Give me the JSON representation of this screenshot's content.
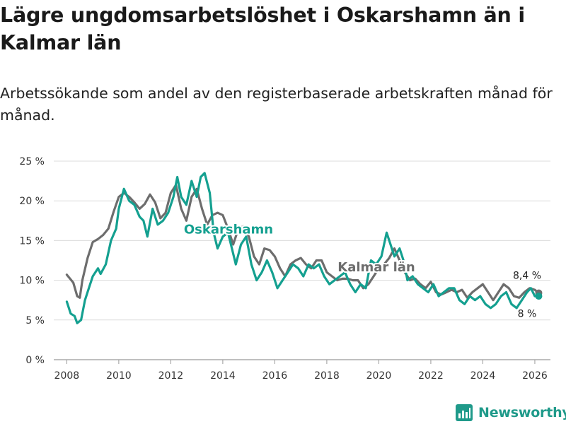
{
  "header": {
    "title": "Lägre ungdomsarbetslöshet i Oskarshamn än i Kalmar län",
    "subtitle": "Arbetssökande som andel av den registerbaserade arbetskraften månad för månad."
  },
  "brand": {
    "name": "Newsworthy",
    "icon": "bar-chart-logo-icon",
    "color": "#1f9a8a"
  },
  "chart_data": {
    "type": "line",
    "title": "Lägre ungdomsarbetslöshet i Oskarshamn än i Kalmar län",
    "subtitle": "Arbetssökande som andel av den registerbaserade arbetskraften månad för månad.",
    "xlabel": "",
    "ylabel": "",
    "x_unit": "year",
    "xlim": [
      2007.5,
      2026.6
    ],
    "ylim": [
      0,
      25
    ],
    "grid": true,
    "x_ticks": [
      2008,
      2010,
      2012,
      2014,
      2016,
      2018,
      2020,
      2022,
      2024,
      2026
    ],
    "x_tick_labels": [
      "2008",
      "2010",
      "2012",
      "2014",
      "2016",
      "2018",
      "2020",
      "2022",
      "2024",
      "2026"
    ],
    "y_ticks": [
      0,
      5,
      10,
      15,
      20,
      25
    ],
    "y_tick_labels": [
      "0 %",
      "5 %",
      "10 %",
      "15 %",
      "20 %",
      "25 %"
    ],
    "series": [
      {
        "name": "Kalmar län",
        "color": "#6d6d6d",
        "end_label": "8,4 %",
        "x": [
          2008.0,
          2008.25,
          2008.4,
          2008.5,
          2008.6,
          2008.8,
          2009.0,
          2009.2,
          2009.4,
          2009.6,
          2009.8,
          2010.0,
          2010.2,
          2010.4,
          2010.6,
          2010.8,
          2011.0,
          2011.2,
          2011.4,
          2011.6,
          2011.8,
          2012.0,
          2012.2,
          2012.4,
          2012.6,
          2012.8,
          2013.0,
          2013.2,
          2013.4,
          2013.6,
          2013.8,
          2014.0,
          2014.2,
          2014.4,
          2014.6,
          2014.8,
          2015.0,
          2015.2,
          2015.4,
          2015.6,
          2015.8,
          2016.0,
          2016.2,
          2016.4,
          2016.6,
          2016.8,
          2017.0,
          2017.2,
          2017.4,
          2017.6,
          2017.8,
          2018.0,
          2018.2,
          2018.4,
          2018.6,
          2018.8,
          2019.0,
          2019.2,
          2019.4,
          2019.6,
          2019.8,
          2020.0,
          2020.2,
          2020.4,
          2020.6,
          2020.8,
          2021.0,
          2021.2,
          2021.4,
          2021.6,
          2021.8,
          2022.0,
          2022.2,
          2022.4,
          2022.6,
          2022.8,
          2023.0,
          2023.2,
          2023.4,
          2023.6,
          2023.8,
          2024.0,
          2024.2,
          2024.4,
          2024.6,
          2024.8,
          2025.0,
          2025.2,
          2025.4,
          2025.6,
          2025.8,
          2026.0,
          2026.15
        ],
        "values": [
          10.7,
          9.7,
          8.0,
          7.8,
          10.0,
          12.8,
          14.8,
          15.2,
          15.7,
          16.5,
          18.6,
          20.5,
          21.0,
          20.5,
          19.8,
          19.0,
          19.6,
          20.8,
          19.8,
          17.8,
          18.5,
          21.0,
          22.0,
          19.0,
          17.5,
          20.5,
          21.5,
          19.0,
          17.0,
          18.2,
          18.5,
          18.2,
          16.5,
          14.5,
          16.5,
          16.8,
          15.5,
          13.0,
          12.0,
          14.0,
          13.8,
          13.0,
          11.5,
          10.5,
          12.0,
          12.5,
          12.8,
          12.0,
          11.5,
          12.5,
          12.5,
          11.0,
          10.5,
          10.0,
          10.2,
          10.2,
          10.0,
          10.0,
          9.0,
          9.5,
          10.5,
          11.5,
          12.0,
          12.8,
          14.0,
          12.5,
          11.0,
          10.0,
          10.2,
          9.5,
          9.0,
          9.8,
          8.5,
          8.2,
          8.5,
          8.8,
          8.5,
          8.8,
          7.8,
          8.5,
          9.0,
          9.5,
          8.5,
          7.5,
          8.5,
          9.5,
          9.0,
          8.0,
          7.8,
          8.5,
          9.0,
          8.8,
          8.4
        ]
      },
      {
        "name": "Oskarshamn",
        "color": "#14a090",
        "end_label": "8 %",
        "x": [
          2008.0,
          2008.15,
          2008.3,
          2008.4,
          2008.55,
          2008.7,
          2008.85,
          2009.0,
          2009.2,
          2009.3,
          2009.5,
          2009.7,
          2009.9,
          2010.0,
          2010.2,
          2010.4,
          2010.6,
          2010.8,
          2010.95,
          2011.1,
          2011.3,
          2011.5,
          2011.7,
          2011.9,
          2012.1,
          2012.25,
          2012.4,
          2012.6,
          2012.8,
          2013.0,
          2013.15,
          2013.3,
          2013.5,
          2013.65,
          2013.8,
          2014.0,
          2014.2,
          2014.35,
          2014.5,
          2014.7,
          2014.9,
          2015.1,
          2015.3,
          2015.5,
          2015.7,
          2015.9,
          2016.1,
          2016.3,
          2016.5,
          2016.7,
          2016.9,
          2017.1,
          2017.3,
          2017.5,
          2017.7,
          2017.9,
          2018.1,
          2018.3,
          2018.5,
          2018.7,
          2018.9,
          2019.1,
          2019.3,
          2019.5,
          2019.7,
          2019.9,
          2020.1,
          2020.3,
          2020.45,
          2020.6,
          2020.8,
          2020.95,
          2021.1,
          2021.3,
          2021.5,
          2021.7,
          2021.9,
          2022.1,
          2022.3,
          2022.5,
          2022.7,
          2022.9,
          2023.1,
          2023.3,
          2023.5,
          2023.7,
          2023.9,
          2024.1,
          2024.3,
          2024.5,
          2024.7,
          2024.9,
          2025.1,
          2025.3,
          2025.5,
          2025.7,
          2025.85,
          2026.0,
          2026.15
        ],
        "values": [
          7.3,
          5.8,
          5.5,
          4.6,
          5.0,
          7.5,
          9.0,
          10.5,
          11.5,
          10.8,
          12.0,
          15.0,
          16.5,
          19.0,
          21.5,
          20.0,
          19.5,
          18.0,
          17.5,
          15.5,
          19.0,
          17.0,
          17.5,
          18.5,
          20.5,
          23.0,
          20.5,
          19.5,
          22.5,
          20.5,
          23.0,
          23.5,
          21.0,
          16.0,
          14.0,
          15.5,
          16.0,
          14.0,
          12.0,
          14.5,
          15.5,
          12.0,
          10.0,
          11.0,
          12.5,
          11.0,
          9.0,
          10.0,
          11.0,
          12.0,
          11.5,
          10.5,
          12.0,
          11.5,
          12.0,
          10.5,
          9.5,
          10.0,
          10.5,
          11.0,
          9.5,
          8.5,
          9.5,
          9.0,
          12.5,
          12.0,
          13.0,
          16.0,
          14.5,
          13.0,
          14.0,
          12.5,
          10.0,
          10.5,
          9.5,
          9.0,
          8.5,
          9.5,
          8.0,
          8.5,
          9.0,
          9.0,
          7.5,
          7.0,
          8.0,
          7.5,
          8.0,
          7.0,
          6.5,
          7.0,
          8.0,
          8.5,
          7.0,
          6.5,
          7.5,
          8.5,
          9.0,
          8.0,
          8.0
        ]
      }
    ],
    "annotations": [
      {
        "series": "Oskarshamn",
        "text": "Oskarshamn"
      },
      {
        "series": "Kalmar län",
        "text": "Kalmar län"
      },
      {
        "series": "Kalmar län",
        "text": "8,4 %"
      },
      {
        "series": "Oskarshamn",
        "text": "8 %"
      }
    ]
  }
}
